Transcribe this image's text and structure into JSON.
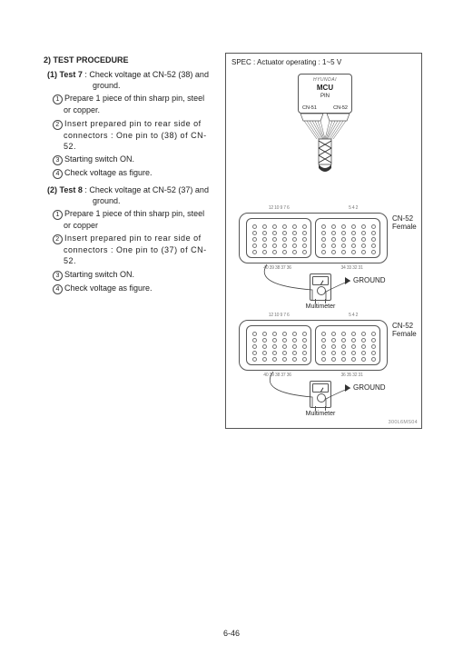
{
  "section": {
    "number": "2)",
    "title": "TEST PROCEDURE"
  },
  "tests": [
    {
      "num": "(1)",
      "name": "Test 7",
      "desc_head": "Check voltage at CN-52 (38) and",
      "desc_cont": "ground.",
      "steps": [
        {
          "n": "1",
          "text": "Prepare 1 piece of thin sharp pin, steel or copper.",
          "spaced": false
        },
        {
          "n": "2",
          "text": "Insert prepared pin to rear side of connectors : One pin to (38) of CN-52.",
          "spaced": true
        },
        {
          "n": "3",
          "text": "Starting switch ON.",
          "spaced": false
        },
        {
          "n": "4",
          "text": "Check voltage as figure.",
          "spaced": false
        }
      ]
    },
    {
      "num": "(2)",
      "name": "Test 8",
      "desc_head": "Check voltage at CN-52 (37) and",
      "desc_cont": "ground.",
      "steps": [
        {
          "n": "1",
          "text": "Prepare 1 piece of thin sharp pin, steel or copper",
          "spaced": false
        },
        {
          "n": "2",
          "text": "Insert prepared pin to rear side of connectors : One pin to (37) of CN-52.",
          "spaced": true
        },
        {
          "n": "3",
          "text": "Starting switch ON.",
          "spaced": false
        },
        {
          "n": "4",
          "text": "Check voltage as figure.",
          "spaced": false
        }
      ]
    }
  ],
  "diagram": {
    "spec": "SPEC : Actuator operating : 1~5 V",
    "mcu": {
      "brand": "HYUNDAI",
      "label": "MCU",
      "pin": "PIN",
      "left": "CN-51",
      "right": "CN-52"
    },
    "connectors": [
      {
        "label1": "CN-52",
        "label2": "Female",
        "top_left": "12 10 9  7  6",
        "top_right": "5  4   2",
        "bot_left": "40 39 38 37 36",
        "bot_right": "34 33  32 31",
        "ground": "GROUND",
        "meter": "Multimeter"
      },
      {
        "label1": "CN-52",
        "label2": "Female",
        "top_left": "12 10 9  7  6",
        "top_right": "5  4   2",
        "bot_left": "40 39 38 37 36",
        "bot_right": "36 35  32 31",
        "ground": "GROUND",
        "meter": "Multimeter"
      }
    ],
    "figref": "300L6MS04"
  },
  "page_number": "6-46",
  "style": {
    "text_color": "#222222",
    "border_color": "#555555",
    "light_text": "#777777",
    "background": "#ffffff"
  }
}
